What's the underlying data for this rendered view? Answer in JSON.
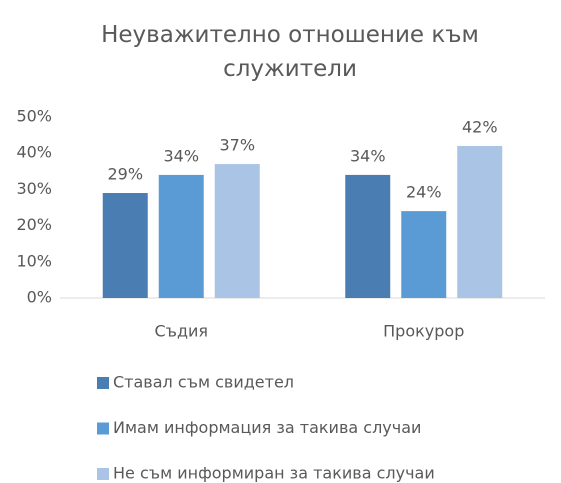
{
  "chart_data": {
    "type": "bar",
    "title": "Неуважително отношение към служители",
    "categories": [
      "Съдия",
      "Прокурор"
    ],
    "series": [
      {
        "name": "Ставал съм свидетел",
        "color": "#4a7eb3",
        "values": [
          29,
          34
        ],
        "value_labels": [
          "29%",
          "34%"
        ]
      },
      {
        "name": "Имам информация за такива случаи",
        "color": "#5b9bd5",
        "values": [
          34,
          24
        ],
        "value_labels": [
          "34%",
          "24%"
        ]
      },
      {
        "name": "Не съм информиран за такива случаи",
        "color": "#aac4e6",
        "values": [
          37,
          42
        ],
        "value_labels": [
          "37%",
          "42%"
        ]
      }
    ],
    "ylim": [
      0,
      50
    ],
    "yticks": [
      {
        "value": 0,
        "label": "0%"
      },
      {
        "value": 10,
        "label": "10%"
      },
      {
        "value": 20,
        "label": "20%"
      },
      {
        "value": 30,
        "label": "30%"
      },
      {
        "value": 40,
        "label": "40%"
      },
      {
        "value": 50,
        "label": "50%"
      }
    ],
    "grid": false,
    "legend": "bottom"
  }
}
